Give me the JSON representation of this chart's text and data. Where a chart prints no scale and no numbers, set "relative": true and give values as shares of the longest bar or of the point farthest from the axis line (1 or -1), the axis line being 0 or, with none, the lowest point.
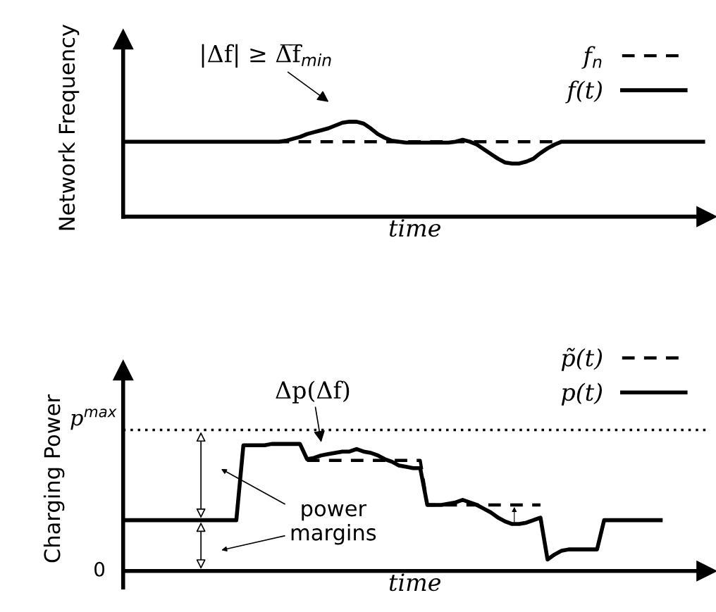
{
  "chart_data": [
    {
      "type": "line",
      "relative": true,
      "xlabel": "time",
      "ylabel": "Network Frequency",
      "legend": "top right",
      "categories": [
        null,
        null,
        null,
        null,
        null,
        null,
        null,
        null,
        null,
        null,
        null,
        null,
        null,
        null,
        null,
        null,
        null,
        null,
        null,
        null,
        null,
        null,
        null,
        null,
        null,
        null,
        null,
        null,
        null,
        null,
        null,
        null,
        null,
        null,
        null,
        null,
        null,
        null,
        null,
        null,
        null,
        null,
        null,
        null,
        null,
        null,
        null,
        null,
        null,
        null,
        null,
        null,
        null,
        null,
        null,
        null,
        null,
        null,
        null,
        null,
        null,
        null,
        null,
        null,
        null,
        null,
        null,
        null,
        null,
        null,
        null,
        null,
        null,
        null,
        null,
        null,
        null,
        null,
        null,
        null,
        null,
        null,
        null
      ],
      "series": [
        {
          "name": "f$_{n}$",
          "color": "#000000",
          "line_style": "dashed",
          "values": [
            0.79,
            0.79,
            0.79,
            0.79,
            0.79,
            0.79,
            0.79,
            0.79,
            0.79,
            0.79,
            0.79,
            0.79,
            0.79,
            0.79,
            0.79,
            0.79,
            0.79,
            0.79,
            0.79,
            0.79,
            0.79,
            0.79,
            0.79,
            0.79,
            0.79,
            0.79,
            0.79,
            0.79,
            0.79,
            0.79,
            0.79,
            0.79,
            0.79,
            0.79,
            0.79,
            0.79,
            0.79,
            0.79,
            0.79,
            0.79,
            0.79,
            0.79,
            0.79,
            0.79,
            0.79,
            0.79,
            0.79,
            0.79,
            0.79,
            0.79,
            0.79,
            0.79,
            0.79,
            0.79,
            0.79,
            0.79,
            0.79,
            0.79,
            0.79,
            0.79,
            0.79,
            0.79,
            0.79,
            0.79,
            0.79,
            0.79,
            0.79,
            0.79,
            0.79,
            0.79,
            0.79,
            0.79,
            0.79,
            0.79,
            0.79,
            0.79,
            0.79,
            0.79,
            0.79,
            0.79,
            0.79,
            0.79,
            0.79
          ]
        },
        {
          "name": "f(t)",
          "color": "#000000",
          "line_style": "solid",
          "values": [
            0.79,
            0.79,
            0.79,
            0.79,
            0.79,
            0.79,
            0.79,
            0.79,
            0.79,
            0.79,
            0.79,
            0.79,
            0.79,
            0.79,
            0.79,
            0.79,
            0.79,
            0.79,
            0.79,
            0.79,
            0.79,
            0.79,
            0.79,
            0.8,
            0.82,
            0.84,
            0.87,
            0.89,
            0.91,
            0.93,
            0.96,
            0.99,
            1,
            1,
            0.98,
            0.93,
            0.87,
            0.83,
            0.8,
            0.79,
            0.78,
            0.78,
            0.78,
            0.78,
            0.78,
            0.78,
            0.78,
            0.79,
            0.81,
            0.79,
            0.76,
            0.71,
            0.66,
            0.61,
            0.57,
            0.56,
            0.56,
            0.58,
            0.61,
            0.67,
            0.72,
            0.76,
            0.79,
            0.79,
            0.79,
            0.79,
            0.79,
            0.79,
            0.79,
            0.79,
            0.79,
            0.79,
            0.79,
            0.79,
            0.79,
            0.79,
            0.79,
            0.79,
            0.79,
            0.79,
            0.79,
            0.79,
            0.79
          ]
        }
      ],
      "annotations": [
        "|Δf| ≥ Δ̅f̅$_{min}$"
      ]
    },
    {
      "type": "line",
      "relative": true,
      "xlabel": "time",
      "ylabel": "Charging Power",
      "legend": "top right",
      "ref_lines": [
        {
          "axis": "y",
          "value": 1.11,
          "color": "#000000",
          "line_style": "dotted"
        }
      ],
      "categories": [
        null,
        null,
        null,
        null,
        null,
        null,
        null,
        null,
        null,
        null,
        null,
        null,
        null,
        null,
        null,
        null,
        null,
        null,
        null,
        null,
        null,
        null,
        null,
        null,
        null,
        null,
        null,
        null,
        null,
        null,
        null,
        null,
        null,
        null,
        null,
        null,
        null,
        null,
        null,
        null,
        null,
        null,
        null,
        null,
        null,
        null,
        null,
        null,
        null,
        null,
        null,
        null,
        null,
        null,
        null,
        null,
        null,
        null,
        null,
        null,
        null,
        null,
        null,
        null,
        null,
        null,
        null,
        null,
        null,
        null,
        null,
        null,
        null,
        null,
        null,
        null,
        null,
        null,
        null,
        null,
        null,
        null,
        null
      ],
      "series": [
        {
          "name": "p̃(t)",
          "color": "#000000",
          "line_style": "dashed",
          "values": [
            null,
            null,
            null,
            null,
            null,
            null,
            null,
            null,
            null,
            null,
            null,
            null,
            null,
            null,
            null,
            null,
            null,
            null,
            null,
            null,
            null,
            null,
            null,
            null,
            null,
            null,
            0.87,
            0.87,
            0.87,
            0.87,
            0.87,
            0.87,
            0.87,
            0.87,
            0.87,
            0.87,
            0.87,
            0.87,
            0.87,
            0.87,
            0.87,
            0.87,
            0.87,
            0.52,
            0.52,
            0.52,
            0.52,
            0.52,
            0.52,
            0.52,
            0.52,
            0.52,
            0.52,
            0.52,
            0.52,
            0.52,
            0.52,
            0.52,
            0.52,
            0.52,
            null,
            null,
            null,
            null,
            null,
            null,
            null,
            null,
            null,
            null,
            null,
            null,
            null,
            null,
            null,
            null,
            null,
            null,
            null,
            null,
            null,
            null,
            null
          ]
        },
        {
          "name": "p(t)",
          "color": "#000000",
          "line_style": "solid",
          "values": [
            0.4,
            0.4,
            0.4,
            0.4,
            0.4,
            0.4,
            0.4,
            0.4,
            0.4,
            0.4,
            0.4,
            0.4,
            0.4,
            0.4,
            0.4,
            0.4,
            0.4,
            0.99,
            0.99,
            0.99,
            0.99,
            1,
            1,
            1,
            1,
            1,
            0.88,
            0.89,
            0.91,
            0.92,
            0.93,
            0.94,
            0.94,
            0.96,
            0.94,
            0.93,
            0.91,
            0.88,
            0.86,
            0.83,
            0.82,
            0.81,
            0.81,
            0.52,
            0.52,
            0.52,
            0.53,
            0.54,
            0.56,
            0.54,
            0.52,
            0.49,
            0.46,
            0.42,
            0.39,
            0.37,
            0.37,
            0.38,
            0.4,
            0.42,
            0.09,
            0.13,
            0.16,
            0.17,
            0.17,
            0.17,
            0.17,
            0.17,
            0.4,
            0.4,
            0.4,
            0.4,
            0.4,
            0.4,
            0.4,
            0.4,
            0.4,
            null,
            null,
            null,
            null,
            null,
            null
          ]
        }
      ],
      "annotations": [
        "Δp(Δf)",
        "power\nmargins",
        "p$^{max}$",
        "0"
      ]
    }
  ]
}
